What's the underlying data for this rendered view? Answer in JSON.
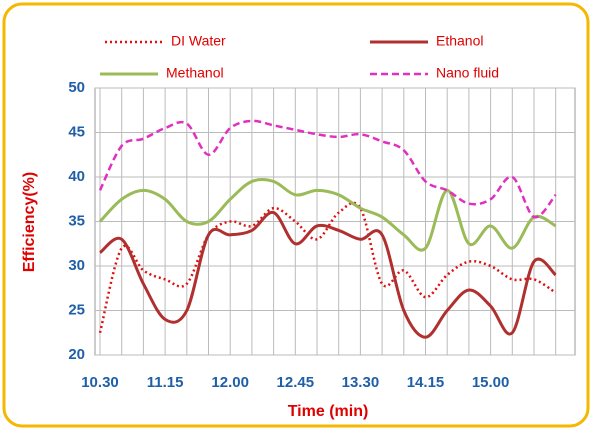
{
  "chart_data": {
    "type": "line",
    "xlabel": "Time (min)",
    "ylabel": "Efficiency(%)",
    "categories": [
      "10.30",
      null,
      null,
      "11.15",
      null,
      null,
      "12.00",
      null,
      null,
      "12.45",
      null,
      null,
      "13.30",
      null,
      null,
      "14.15",
      null,
      null,
      "15.00",
      null,
      null,
      null
    ],
    "ylim": [
      20,
      50
    ],
    "yticks": [
      20,
      25,
      30,
      35,
      40,
      45,
      50
    ],
    "grid": true,
    "series": [
      {
        "name": "DI Water",
        "color": "#e01010",
        "dash": "dotted",
        "values": [
          22.5,
          32,
          29.5,
          28.5,
          28,
          33.5,
          35,
          34.5,
          36.5,
          35,
          33,
          36,
          36.5,
          28,
          29.5,
          26.5,
          29,
          30.5,
          30,
          28.5,
          28.5,
          27
        ]
      },
      {
        "name": "Ethanol",
        "color": "#b03030",
        "dash": "solid",
        "values": [
          31.5,
          33,
          28,
          24,
          25,
          33.5,
          33.5,
          34,
          36,
          32.5,
          34.5,
          34,
          33,
          33.5,
          25,
          22,
          25,
          27.3,
          25.5,
          22.5,
          30.5,
          29
        ]
      },
      {
        "name": "Methanol",
        "color": "#9bbb59",
        "dash": "solid",
        "values": [
          35,
          37.5,
          38.5,
          37.5,
          35,
          35,
          37.5,
          39.5,
          39.5,
          38,
          38.5,
          38,
          36.5,
          35.5,
          33.5,
          32,
          38.5,
          32.5,
          34.5,
          32,
          35.5,
          34.5
        ]
      },
      {
        "name": "Nano fluid",
        "color": "#e030c0",
        "dash": "dashed",
        "values": [
          38.5,
          43.5,
          44.3,
          45.5,
          46,
          42.5,
          45.5,
          46.3,
          45.8,
          45.3,
          44.8,
          44.5,
          44.8,
          44,
          43,
          39.5,
          38.5,
          37,
          37.5,
          40,
          35.5,
          38
        ]
      }
    ]
  }
}
